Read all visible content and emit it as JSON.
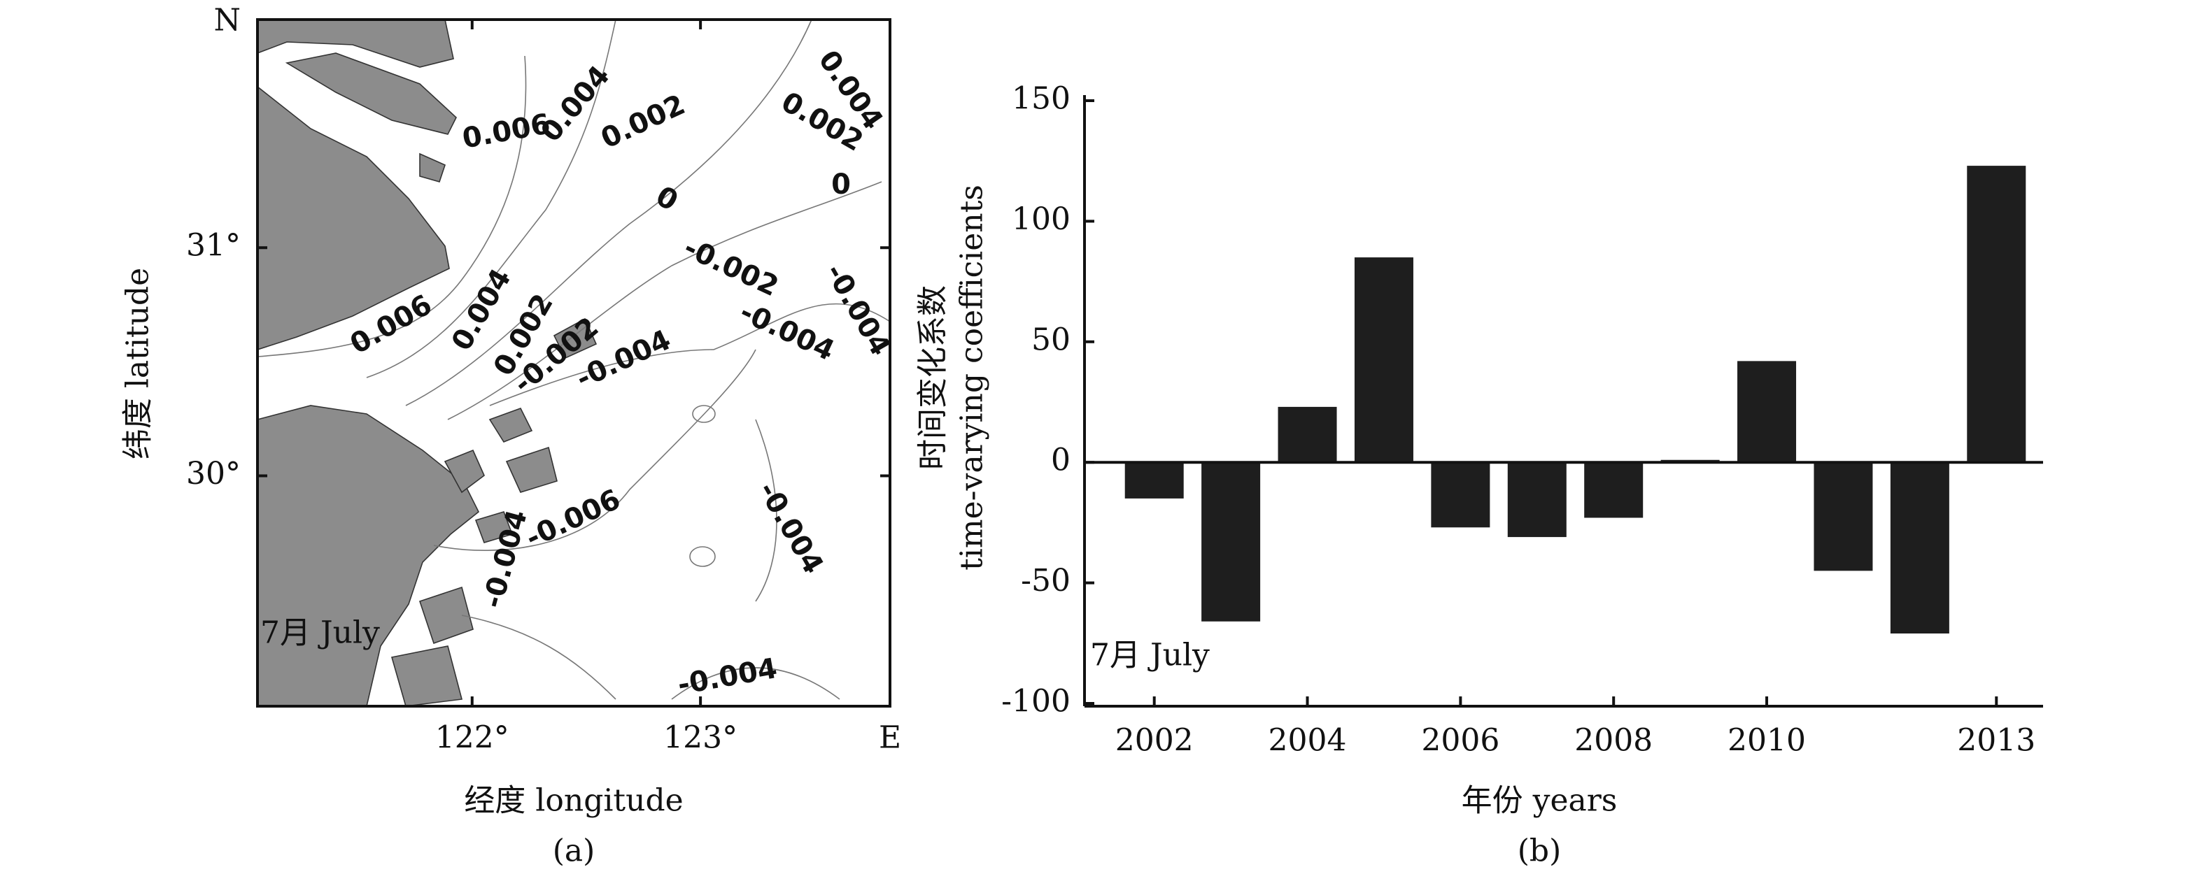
{
  "chart_data": [
    {
      "type": "map",
      "xlabel": "经度 longitude",
      "ylabel": "纬度 latitude",
      "caption": "(a)",
      "annotation": "7月 July",
      "north_label": "N",
      "east_label": "E",
      "xlim": [
        121.06,
        123.83
      ],
      "ylim": [
        28.99,
        32.0
      ],
      "xticks": [
        {
          "value": 122,
          "label": "122°"
        },
        {
          "value": 123,
          "label": "123°"
        }
      ],
      "yticks": [
        {
          "value": 30,
          "label": "30°"
        },
        {
          "value": 31,
          "label": "31°"
        }
      ],
      "contour_labels": [
        "0.006",
        "0.004",
        "0.002",
        "0.004",
        "0.002",
        "0",
        "0",
        "-0.002",
        "-0.004",
        "0.006",
        "0.004",
        "0.002",
        "-0.002",
        "-0.004",
        "-0.004",
        "-0.006",
        "-0.004",
        "-0.004",
        "-0.004"
      ]
    },
    {
      "type": "bar",
      "ylabel": [
        "时间变化系数",
        "time-varying coefficients"
      ],
      "xlabel": "年份 years",
      "caption": "(b)",
      "annotation": "7月 July",
      "categories": [
        "2002",
        null,
        "2004",
        null,
        "2006",
        null,
        "2008",
        null,
        "2010",
        null,
        null,
        "2013"
      ],
      "values": [
        -15,
        -66,
        23,
        85,
        -27,
        -31,
        -23,
        1,
        42,
        -45,
        -71,
        123
      ],
      "color": "#1e1e1e",
      "ylim": [
        -100,
        150
      ],
      "yticks": [
        -100,
        -50,
        0,
        50,
        100,
        150
      ]
    }
  ]
}
